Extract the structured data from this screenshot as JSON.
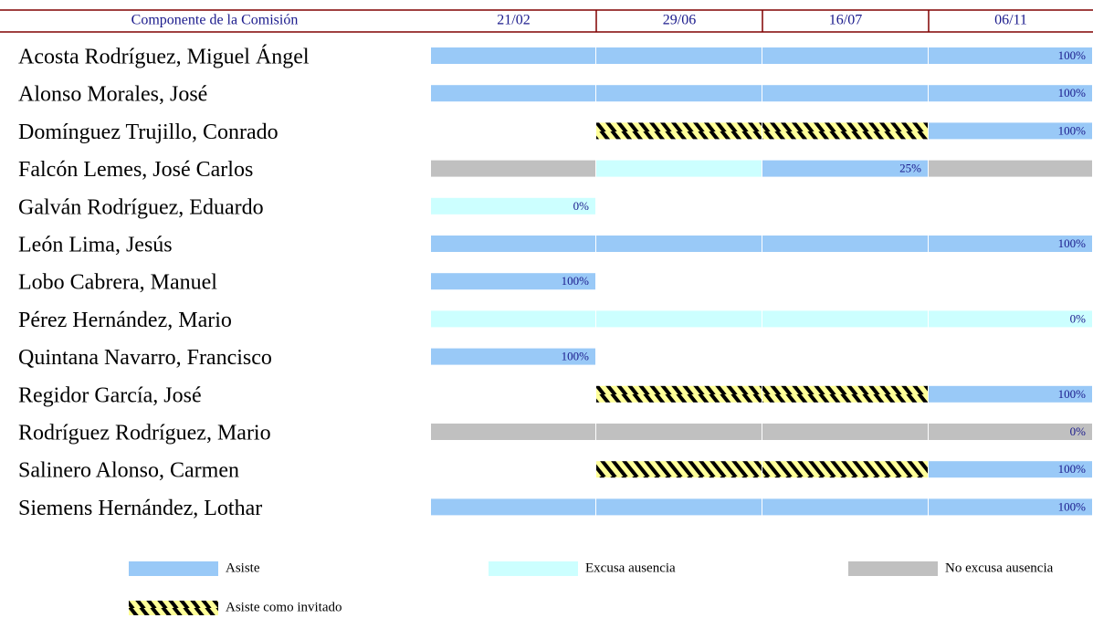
{
  "table": {
    "header": [
      "Componente de la Comisión",
      "21/02",
      "29/06",
      "16/07",
      "06/11"
    ],
    "rows": [
      {
        "name": "Acosta Rodríguez, Miguel Ángel",
        "cells": [
          "Asiste",
          "Asiste",
          "Asiste",
          "Asiste"
        ],
        "label": "100%"
      },
      {
        "name": "Alonso Morales, José",
        "cells": [
          "Asiste",
          "Asiste",
          "Asiste",
          "Asiste"
        ],
        "label": "100%"
      },
      {
        "name": "Domínguez Trujillo, Conrado",
        "cells": [
          null,
          "Asiste como invitado",
          "Asiste como invitado",
          "Asiste"
        ],
        "label": "100%"
      },
      {
        "name": "Falcón Lemes, José Carlos",
        "cells": [
          "No excusa ausencia",
          "Excusa ausencia",
          "Asiste",
          "No excusa ausencia"
        ],
        "label": "25%",
        "label_at": 2
      },
      {
        "name": "Galván Rodríguez, Eduardo",
        "cells": [
          "Excusa ausencia",
          null,
          null,
          null
        ],
        "label": "0%"
      },
      {
        "name": "León Lima, Jesús",
        "cells": [
          "Asiste",
          "Asiste",
          "Asiste",
          "Asiste"
        ],
        "label": "100%"
      },
      {
        "name": "Lobo Cabrera, Manuel",
        "cells": [
          "Asiste",
          null,
          null,
          null
        ],
        "label": "100%"
      },
      {
        "name": "Pérez Hernández, Mario",
        "cells": [
          "Excusa ausencia",
          "Excusa ausencia",
          "Excusa ausencia",
          "Excusa ausencia"
        ],
        "label": "0%"
      },
      {
        "name": "Quintana Navarro, Francisco",
        "cells": [
          "Asiste",
          null,
          null,
          null
        ],
        "label": "100%"
      },
      {
        "name": "Regidor García, José",
        "cells": [
          null,
          "Asiste como invitado",
          "Asiste como invitado",
          "Asiste"
        ],
        "label": "100%"
      },
      {
        "name": "Rodríguez Rodríguez, Mario",
        "cells": [
          "No excusa ausencia",
          "No excusa ausencia",
          "No excusa ausencia",
          "No excusa ausencia"
        ],
        "label": "0%",
        "label_color": "#e8e8e8"
      },
      {
        "name": "Salinero Alonso, Carmen",
        "cells": [
          null,
          "Asiste como invitado",
          "Asiste como invitado",
          "Asiste"
        ],
        "label": "100%"
      },
      {
        "name": "Siemens Hernández, Lothar",
        "cells": [
          "Asiste",
          "Asiste",
          "Asiste",
          "Asiste"
        ],
        "label": "100%"
      }
    ]
  },
  "legend": [
    {
      "label": "Asiste",
      "color": "#99c9f7"
    },
    {
      "label": "Excusa ausencia",
      "color": "#ccffff"
    },
    {
      "label": "No excusa ausencia",
      "color": "#c0c0c0"
    },
    {
      "label": "Asiste como invitado",
      "color": "#ffff99",
      "pattern": "hatch"
    }
  ]
}
